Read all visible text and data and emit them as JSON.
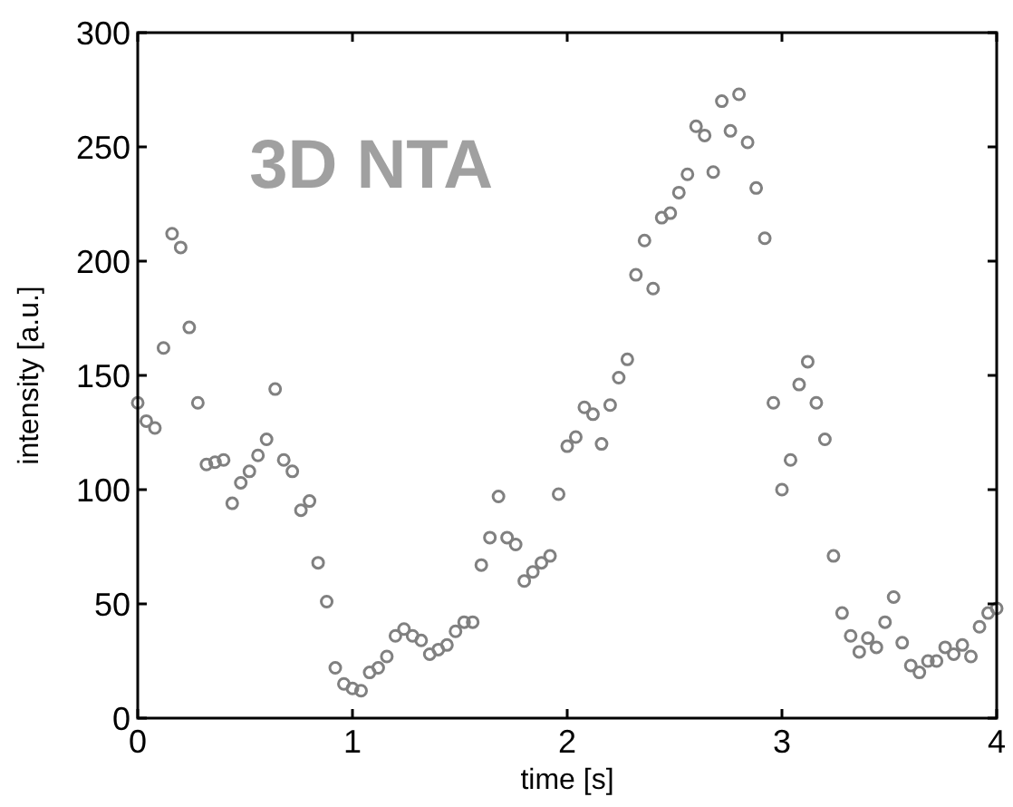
{
  "chart_data": {
    "type": "scatter",
    "xlabel": "time [s]",
    "ylabel": "intensity [a.u.]",
    "annotations": [
      "3D NTA"
    ],
    "xlim": [
      0,
      4
    ],
    "ylim": [
      0,
      300
    ],
    "xticks": [
      0,
      1,
      2,
      3,
      4
    ],
    "yticks": [
      0,
      50,
      100,
      150,
      200,
      250,
      300
    ],
    "grid": false,
    "marker": "circle",
    "x": [
      0,
      0.04,
      0.08,
      0.12,
      0.16,
      0.2,
      0.24,
      0.28,
      0.32,
      0.36,
      0.4,
      0.44,
      0.48,
      0.52,
      0.56,
      0.6,
      0.64,
      0.68,
      0.72,
      0.76,
      0.8,
      0.84,
      0.88,
      0.92,
      0.96,
      1,
      1.04,
      1.08,
      1.12,
      1.16,
      1.2,
      1.24,
      1.28,
      1.32,
      1.36,
      1.4,
      1.44,
      1.48,
      1.52,
      1.56,
      1.6,
      1.64,
      1.68,
      1.72,
      1.76,
      1.8,
      1.84,
      1.88,
      1.92,
      1.96,
      2,
      2.04,
      2.08,
      2.12,
      2.16,
      2.2,
      2.24,
      2.28,
      2.32,
      2.36,
      2.4,
      2.44,
      2.48,
      2.52,
      2.56,
      2.6,
      2.64,
      2.68,
      2.72,
      2.76,
      2.8,
      2.84,
      2.88,
      2.92,
      2.96,
      3,
      3.04,
      3.08,
      3.12,
      3.16,
      3.2,
      3.24,
      3.28,
      3.32,
      3.36,
      3.4,
      3.44,
      3.48,
      3.52,
      3.56,
      3.6,
      3.64,
      3.68,
      3.72,
      3.76,
      3.8,
      3.84,
      3.88,
      3.92,
      3.96,
      4
    ],
    "series": [
      {
        "color": "#808080",
        "values": [
          138,
          130,
          127,
          162,
          212,
          206,
          171,
          138,
          111,
          112,
          113,
          94,
          103,
          108,
          115,
          122,
          144,
          113,
          108,
          91,
          95,
          68,
          51,
          22,
          15,
          13,
          12,
          20,
          22,
          27,
          36,
          39,
          36,
          34,
          28,
          30,
          32,
          38,
          42,
          42,
          67,
          79,
          97,
          79,
          76,
          60,
          64,
          68,
          71,
          98,
          119,
          123,
          136,
          133,
          120,
          137,
          149,
          157,
          194,
          209,
          188,
          219,
          221,
          230,
          238,
          259,
          255,
          239,
          270,
          257,
          273,
          252,
          232,
          210,
          138,
          100,
          113,
          146,
          156,
          138,
          122,
          71,
          46,
          36,
          29,
          35,
          31,
          42,
          53,
          33,
          23,
          20,
          25,
          25,
          31,
          28,
          32,
          27,
          40,
          46,
          48
        ]
      }
    ]
  }
}
